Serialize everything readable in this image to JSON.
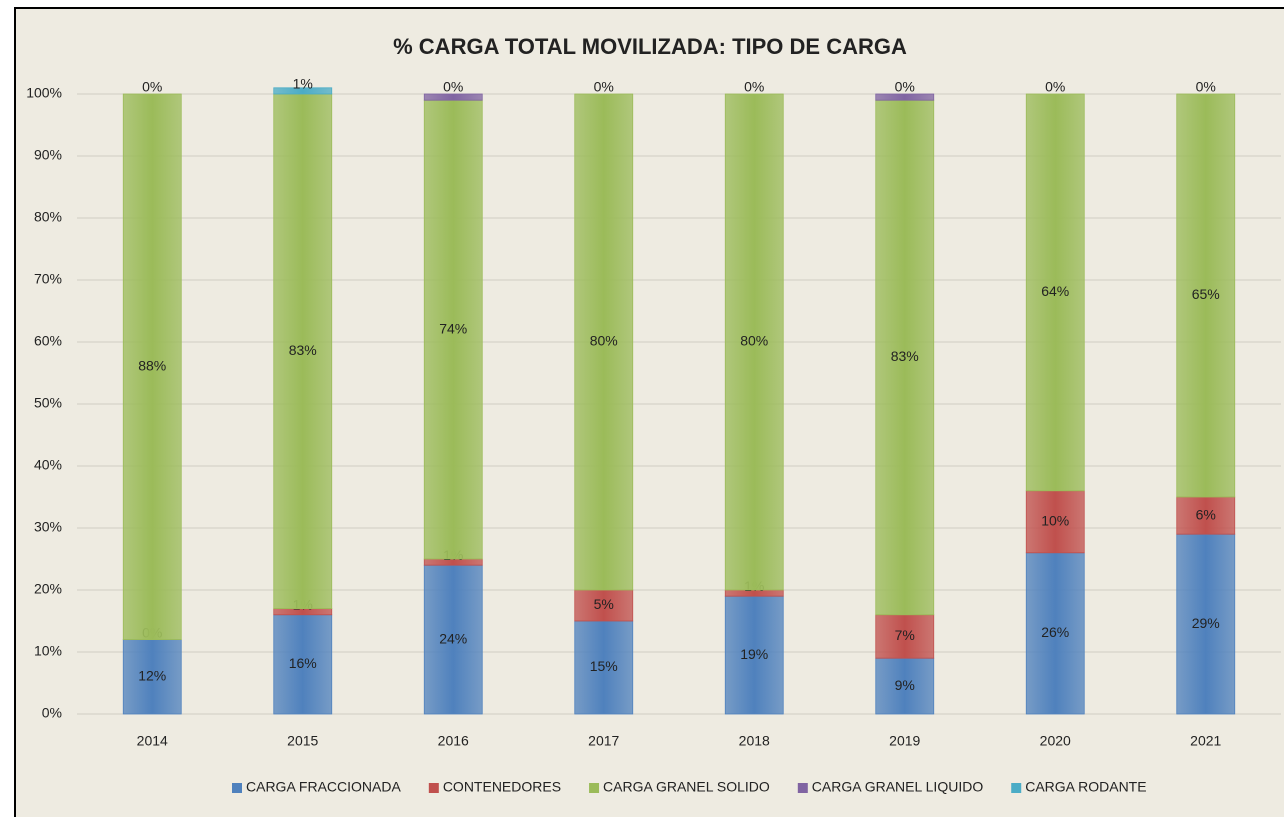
{
  "chart_data": {
    "type": "stacked_bar",
    "title": "% CARGA TOTAL MOVILIZADA: TIPO DE CARGA",
    "categories": [
      "2014",
      "2015",
      "2016",
      "2017",
      "2018",
      "2019",
      "2020",
      "2021"
    ],
    "series": [
      {
        "name": "CARGA FRACCIONADA",
        "color": "#4f81bd",
        "values": [
          12,
          16,
          24,
          15,
          19,
          9,
          26,
          29
        ],
        "value_labels": [
          "12%",
          "16%",
          "24%",
          "15%",
          "19%",
          "9%",
          "26%",
          "29%"
        ]
      },
      {
        "name": "CONTENEDORES",
        "color": "#c0504d",
        "values": [
          0,
          1,
          1,
          5,
          1,
          7,
          10,
          6
        ],
        "value_labels": [
          "0%",
          "1%",
          "1%",
          "5%",
          "1%",
          "7%",
          "10%",
          "6%"
        ]
      },
      {
        "name": "CARGA GRANEL SOLIDO",
        "color": "#9bbb59",
        "values": [
          88,
          83,
          74,
          80,
          80,
          83,
          64,
          65
        ],
        "value_labels": [
          "88%",
          "83%",
          "74%",
          "80%",
          "80%",
          "83%",
          "64%",
          "65%"
        ]
      },
      {
        "name": "CARGA GRANEL LIQUIDO",
        "color": "#8064a2",
        "values": [
          0,
          0,
          1,
          0,
          0,
          1,
          0,
          0
        ],
        "value_labels": [
          null,
          null,
          null,
          null,
          null,
          null,
          null,
          null
        ]
      },
      {
        "name": "CARGA RODANTE",
        "color": "#4bacc6",
        "values": [
          0,
          1,
          0,
          0,
          0,
          0,
          0,
          0
        ],
        "value_labels": [
          "0%",
          "1%",
          "0%",
          "0%",
          "0%",
          "0%",
          "0%",
          "0%"
        ]
      }
    ],
    "ylim": [
      0,
      100
    ],
    "yticks": [
      {
        "value": 0,
        "label": "0%"
      },
      {
        "value": 10,
        "label": "10%"
      },
      {
        "value": 20,
        "label": "20%"
      },
      {
        "value": 30,
        "label": "30%"
      },
      {
        "value": 40,
        "label": "40%"
      },
      {
        "value": 50,
        "label": "50%"
      },
      {
        "value": 60,
        "label": "60%"
      },
      {
        "value": 70,
        "label": "70%"
      },
      {
        "value": 80,
        "label": "80%"
      },
      {
        "value": 90,
        "label": "90%"
      },
      {
        "value": 100,
        "label": "100%"
      }
    ],
    "grid": true,
    "legend": "bottom"
  }
}
